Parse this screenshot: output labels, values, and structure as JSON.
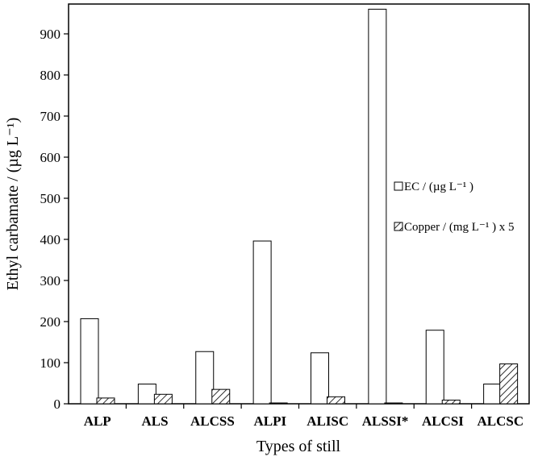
{
  "chart_data": {
    "type": "bar",
    "title": "",
    "xlabel": "Types of still",
    "ylabel": "Ethyl carbamate / (µg L⁻¹)",
    "ylim": [
      0,
      970
    ],
    "yticks": [
      0,
      100,
      200,
      300,
      400,
      500,
      600,
      700,
      800,
      900
    ],
    "categories": [
      "ALP",
      "ALS",
      "ALCSS",
      "ALPI",
      "ALISC",
      "ALSSI*",
      "ALCSI",
      "ALCSC"
    ],
    "series": [
      {
        "name": "EC / (µg L⁻¹ )",
        "fill": "#ffffff",
        "pattern": "none",
        "values": [
          207,
          48,
          127,
          396,
          124,
          960,
          179,
          48
        ]
      },
      {
        "name": "Copper / (mg L⁻¹ ) x 5",
        "fill": "#ffffff",
        "pattern": "diagonal-hatch",
        "values": [
          14,
          23,
          35,
          2,
          17,
          2,
          9,
          97
        ]
      }
    ],
    "grid": false,
    "legend": "right, mid-height inside plot"
  }
}
